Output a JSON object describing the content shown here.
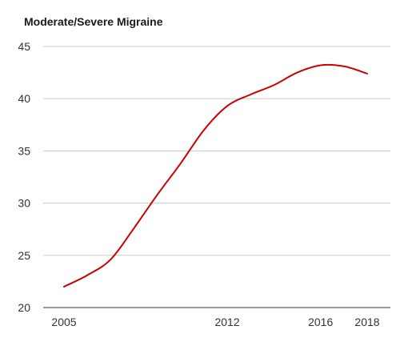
{
  "chart_data": {
    "type": "line",
    "title": "Moderate/Severe Migraine",
    "xlabel": "",
    "ylabel": "",
    "ylim": [
      20,
      45
    ],
    "yticks": [
      20,
      25,
      30,
      35,
      40,
      45
    ],
    "xlim": [
      2005,
      2018
    ],
    "xticks": [
      2005,
      2012,
      2016,
      2018
    ],
    "grid": true,
    "legend": "none",
    "series": [
      {
        "color": "#cc0000",
        "x": [
          2005,
          2006,
          2007,
          2008,
          2009,
          2010,
          2011,
          2012,
          2013,
          2014,
          2015,
          2016,
          2017,
          2018
        ],
        "y": [
          22.0,
          23.1,
          24.6,
          27.6,
          30.8,
          33.8,
          37.0,
          39.3,
          40.4,
          41.3,
          42.5,
          43.2,
          43.1,
          42.4
        ]
      }
    ]
  }
}
